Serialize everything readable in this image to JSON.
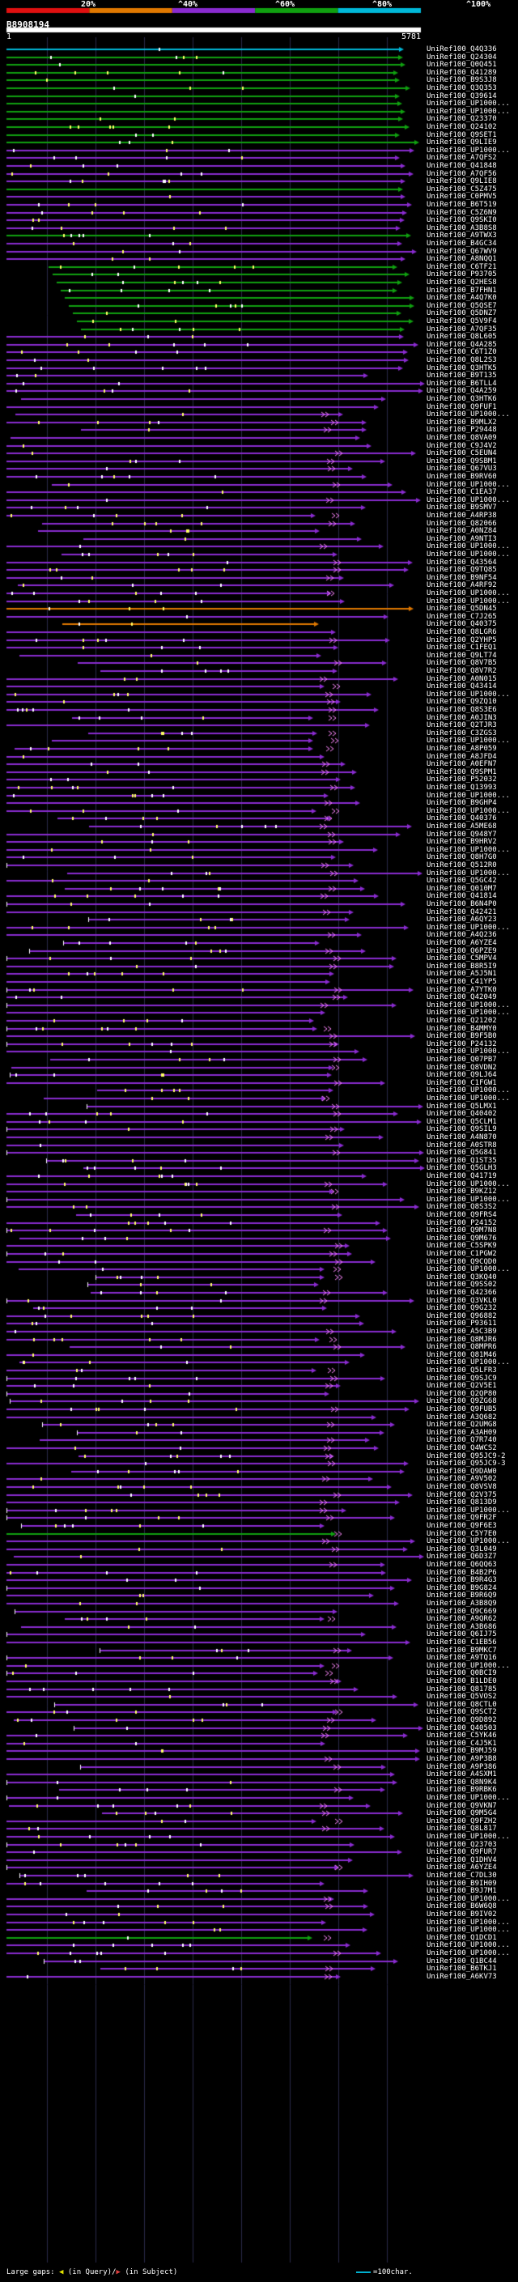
{
  "header": {
    "scale_labels": [
      "20%",
      "^40%",
      "^60%",
      "^80%",
      "^100%"
    ],
    "colors": [
      "#e01010",
      "#e07800",
      "#8a2bd0",
      "#10a010",
      "#00b8d8"
    ]
  },
  "query": {
    "id": "B8908194",
    "start": "1",
    "end": "5781"
  },
  "legend": {
    "large_gaps": "Large gaps:",
    "query_part": "(in Query)",
    "separator": "/",
    "subject_part": "(in Subject)",
    "scale": "=100char."
  },
  "hits": [
    "UniRef100_Q4Q336",
    "UniRef100_Q24304",
    "UniRef100_Q0Q451",
    "UniRef100_Q41289",
    "UniRef100_B9S3J8",
    "UniRef100_Q3Q353",
    "UniRef100_Q39614",
    "UniRef100_UP1000...",
    "UniRef100_UP1000...",
    "UniRef100_Q23370",
    "UniRef100_Q24102",
    "UniRef100_Q9SET1",
    "UniRef100_Q9LIE9",
    "UniRef100_UP1000...",
    "UniRef100_A7QFS2",
    "UniRef100_Q41848",
    "UniRef100_A7QF56",
    "UniRef100_Q9LIE8",
    "UniRef100_C5Z475",
    "UniRef100_C0PMV5",
    "UniRef100_B6T519",
    "UniRef100_C5Z6N9",
    "UniRef100_Q9SKI0",
    "UniRef100_A3B8S8",
    "UniRef100_A9TWX3",
    "UniRef100_B4GC34",
    "UniRef100_Q67WV9",
    "UniRef100_A8NQQ1",
    "UniRef100_C6TF21",
    "UniRef100_P93705",
    "UniRef100_Q2HES8",
    "UniRef100_B7FHN1",
    "UniRef100_A4Q7K0",
    "UniRef100_Q5QSE7",
    "UniRef100_Q5DNZ7",
    "UniRef100_Q5V9F4",
    "UniRef100_A7QF35",
    "UniRef100_Q8L605",
    "UniRef100_Q4A285",
    "UniRef100_C6T1Z0",
    "UniRef100_Q8L2S3",
    "UniRef100_Q3HTK5",
    "UniRef100_B9T135",
    "UniRef100_B6TLL4",
    "UniRef100_Q4A259",
    "UniRef100_Q3HTK6",
    "UniRef100_Q9FUF1",
    "UniRef100_UP1000...",
    "UniRef100_B9MLX2",
    "UniRef100_P29448",
    "UniRef100_Q8VA09",
    "UniRef100_C9J4V2",
    "UniRef100_C5EUN4",
    "UniRef100_Q9SBM1",
    "UniRef100_Q67VU3",
    "UniRef100_B9RV60",
    "UniRef100_UP1000...",
    "UniRef100_C1EA37",
    "UniRef100_UP1000...",
    "UniRef100_B9SMV7",
    "UniRef100_A4RP38",
    "UniRef100_Q82066",
    "UniRef100_A0NZ84",
    "UniRef100_A9NTI3",
    "UniRef100_UP1000...",
    "UniRef100_UP1000...",
    "UniRef100_Q43564",
    "UniRef100_Q9TQ85",
    "UniRef100_B9NF54",
    "UniRef100_A4RF92",
    "UniRef100_UP1000...",
    "UniRef100_UP1000...",
    "UniRef100_Q5DN45",
    "UniRef100_C7J265",
    "UniRef100_Q40375",
    "UniRef100_Q8LGR6",
    "UniRef100_Q2YHP5",
    "UniRef100_C1FEQ1",
    "UniRef100_Q9LT74",
    "UniRef100_Q8V7B5",
    "UniRef100_Q8V7R2",
    "UniRef100_A0N015",
    "UniRef100_Q43414",
    "UniRef100_UP1000...",
    "UniRef100_Q9ZQ10",
    "UniRef100_Q8S3E6",
    "UniRef100_A0JIN3",
    "UniRef100_Q2TJR3",
    "UniRef100_C3ZGS3",
    "UniRef100_UP1000...",
    "UniRef100_A8P059",
    "UniRef100_A8JFD4",
    "UniRef100_A0EFN7",
    "UniRef100_Q9SPM1",
    "UniRef100_P52032",
    "UniRef100_Q13993",
    "UniRef100_UP1000...",
    "UniRef100_B9GHP4",
    "UniRef100_UP1000...",
    "UniRef100_Q40376",
    "UniRef100_A5ME68",
    "UniRef100_Q948Y7",
    "UniRef100_B9HRV2",
    "UniRef100_UP1000...",
    "UniRef100_Q8H7G0",
    "UniRef100_Q512R0",
    "UniRef100_UP1000...",
    "UniRef100_Q5GC42",
    "UniRef100_Q010M7",
    "UniRef100_Q41814",
    "UniRef100_B6N4P0",
    "UniRef100_Q42421",
    "UniRef100_A6QY23",
    "UniRef100_UP1000...",
    "UniRef100_A4Q236",
    "UniRef100_A6YZE4",
    "UniRef100_Q6PZE9",
    "UniRef100_C5MPV4",
    "UniRef100_B8R5I9",
    "UniRef100_A5J5N1",
    "UniRef100_C41YP5",
    "UniRef100_A7YTK0",
    "UniRef100_Q42049",
    "UniRef100_UP1000...",
    "UniRef100_UP1000...",
    "UniRef100_Q21202",
    "UniRef100_B4MMY0",
    "UniRef100_B9F5B0",
    "UniRef100_P24132",
    "UniRef100_UP1000...",
    "UniRef100_Q07PB7",
    "UniRef100_Q8VDN2",
    "UniRef100_Q9LJ64",
    "UniRef100_C1FGW1",
    "UniRef100_UP1000...",
    "UniRef100_UP1000...",
    "UniRef100_Q5LMX1",
    "UniRef100_Q40402",
    "UniRef100_Q5CLM1",
    "UniRef100_Q9SIL9",
    "UniRef100_A4N870",
    "UniRef100_A0STR8",
    "UniRef100_Q5G841",
    "UniRef100_Q1ST35",
    "UniRef100_Q5GLH3",
    "UniRef100_Q41719",
    "UniRef100_UP1000...",
    "UniRef100_B9KZ12",
    "UniRef100_UP1000...",
    "UniRef100_Q8S3S2",
    "UniRef100_Q9FRS4",
    "UniRef100_P24152",
    "UniRef100_Q9M7N8",
    "UniRef100_Q9M676",
    "UniRef100_C5SPK9",
    "UniRef100_C1PGW2",
    "UniRef100_Q9CQD0",
    "UniRef100_UP1000...",
    "UniRef100_Q3KQ40",
    "UniRef100_Q9SS02",
    "UniRef100_Q42366",
    "UniRef100_Q3VKL0",
    "UniRef100_Q9G232",
    "UniRef100_Q96882",
    "UniRef100_P93611",
    "UniRef100_A5C3B9",
    "UniRef100_Q8MJR6",
    "UniRef100_Q8MPR6",
    "UniRef100_Q81M46",
    "UniRef100_UP1000...",
    "UniRef100_Q5LFR3",
    "UniRef100_Q9SJC9",
    "UniRef100_Q2V5E1",
    "UniRef100_Q2QP80",
    "UniRef100_Q9ZG68",
    "UniRef100_Q9FUB5",
    "UniRef100_A3Q682",
    "UniRef100_Q2UMG8",
    "UniRef100_A3AH09",
    "UniRef100_Q7R740",
    "UniRef100_Q4WCS2",
    "UniRef100_Q95JC9-2",
    "UniRef100_Q95JC9-3",
    "UniRef100_Q9DAW0",
    "UniRef100_A9V502",
    "UniRef100_Q8VSV8",
    "UniRef100_Q2V375",
    "UniRef100_Q813D9",
    "UniRef100_UP1000...",
    "UniRef100_Q9FR2F",
    "UniRef100_Q9F6E3",
    "UniRef100_C5Y7E0",
    "UniRef100_UP1000...",
    "UniRef100_Q3L049",
    "UniRef100_Q6D3Z7",
    "UniRef100_Q6QQ63",
    "UniRef100_B4B2P6",
    "UniRef100_B9R4G3",
    "UniRef100_B9G824",
    "UniRef100_B9R6Q9",
    "UniRef100_A3B8Q9",
    "UniRef100_Q9C669",
    "UniRef100_A9QR62",
    "UniRef100_A3B686",
    "UniRef100_Q6IJ75",
    "UniRef100_C1EB56",
    "UniRef100_B9MKC7",
    "UniRef100_A9TQ16",
    "UniRef100_UP1000...",
    "UniRef100_Q0BCI9",
    "UniRef100_B1LDE0",
    "UniRef100_Q81785",
    "UniRef100_Q5VOS2",
    "UniRef100_Q8CTL0",
    "UniRef100_Q9SCT2",
    "UniRef100_Q9D892",
    "UniRef100_Q40503",
    "UniRef100_C5YK46",
    "UniRef100_C4J5K1",
    "UniRef100_B9MJ59",
    "UniRef100_A9P3B8",
    "UniRef100_A9P386",
    "UniRef100_A4SXM1",
    "UniRef100_Q8N9K4",
    "UniRef100_B9RBK6",
    "UniRef100_UP1000...",
    "UniRef100_Q9VKN7",
    "UniRef100_Q9M5G4",
    "UniRef100_Q9FZH2",
    "UniRef100_Q8L817",
    "UniRef100_UP1000...",
    "UniRef100_Q23703",
    "UniRef100_Q9FUR7",
    "UniRef100_Q1DHV4",
    "UniRef100_A6YZE4",
    "UniRef100_C7DL30",
    "UniRef100_B9IH09",
    "UniRef100_B9J7M1",
    "UniRef100_UP1000...",
    "UniRef100_B6W6Q8",
    "UniRef100_B9IV02",
    "UniRef100_UP1000...",
    "UniRef100_UP1000...",
    "UniRef100_Q1DCD1",
    "UniRef100_UP1000...",
    "UniRef100_UP1000...",
    "UniRef100_Q1BC44",
    "UniRef100_B6TKJ1",
    "UniRef100_A6KV73"
  ]
}
